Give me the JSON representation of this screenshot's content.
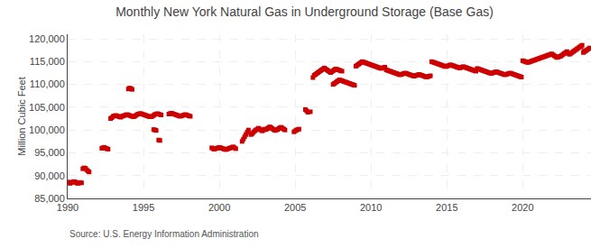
{
  "chart_data": {
    "type": "line",
    "title": "Monthly New York Natural Gas in Underground Storage (Base Gas)",
    "ylabel": "Million Cubic Feet",
    "annotations": [
      "Source: U.S. Energy Information Administration"
    ],
    "color": "#cc0000",
    "marker": "square",
    "line_style": "solid",
    "grid": true,
    "xlim": [
      1990.0,
      2024.5
    ],
    "xticks": [
      1990,
      1995,
      2000,
      2005,
      2010,
      2015,
      2020
    ],
    "ylim": [
      85000,
      121000
    ],
    "yticks": [
      {
        "value": 85000,
        "label": "85,000"
      },
      {
        "value": 90000,
        "label": "90,000"
      },
      {
        "value": 95000,
        "label": "95,000"
      },
      {
        "value": 100000,
        "label": "100,000"
      },
      {
        "value": 105000,
        "label": "105,000"
      },
      {
        "value": 110000,
        "label": "110,000"
      },
      {
        "value": 115000,
        "label": "115,000"
      },
      {
        "value": 120000,
        "label": "120,000"
      }
    ],
    "x": [
      1990,
      1990.0833,
      1990.1667,
      1990.25,
      1990.3333,
      1990.4167,
      1990.5,
      1990.5833,
      1990.6667,
      1990.75,
      1990.8333,
      1990.9167,
      null,
      1991,
      1991.0833,
      1991.1667,
      1991.25,
      1991.3333,
      1991.4167,
      null,
      1992.25,
      1992.3333,
      1992.4167,
      1992.5,
      1992.5833,
      1992.6667,
      null,
      1992.83,
      1992.9133,
      1992.9967,
      1993.08,
      1993.1633,
      1993.2467,
      1993.33,
      1993.4133,
      1993.4967,
      1993.58,
      1993.6633,
      1993.7467,
      1993.83,
      1993.9133,
      1993.9967,
      1994.08,
      1994.1633,
      1994.2467,
      1994.33,
      1994.4133,
      1994.4967,
      1994.58,
      1994.6633,
      1994.7467,
      1994.83,
      1994.9133,
      1994.9967,
      1995.08,
      1995.1633,
      1995.2467,
      1995.33,
      1995.4133,
      1995.4967,
      1995.58,
      1995.6633,
      1995.7467,
      1995.83,
      1995.9133,
      1995.9967,
      1996.08,
      1996.1633,
      null,
      1994,
      1994.0833,
      1994.1667,
      1994.25,
      null,
      1995.67,
      1995.7533,
      1995.8367,
      null,
      1996,
      1996.0833,
      null,
      1996.67,
      1996.7533,
      1996.8367,
      1996.92,
      1997.0033,
      1997.0867,
      1997.17,
      1997.2533,
      1997.3367,
      1997.42,
      1997.5033,
      1997.5867,
      1997.67,
      1997.7533,
      1997.8367,
      1997.92,
      1998.0033,
      1998.0867,
      null,
      1999.5,
      1999.5833,
      1999.6667,
      1999.75,
      1999.8333,
      1999.9167,
      2000,
      2000.0833,
      2000.1667,
      2000.25,
      2000.3333,
      2000.4167,
      2000.5,
      2000.5833,
      2000.6667,
      2000.75,
      2000.8333,
      2000.9167,
      2001,
      2001.0833,
      null,
      2001.5,
      2001.5833,
      2001.6667,
      2001.75,
      2001.8333,
      2001.9167,
      null,
      2002.08,
      2002.1633,
      2002.2467,
      2002.33,
      2002.4133,
      2002.4967,
      2002.58,
      2002.6633,
      2002.7467,
      2002.83,
      2002.9133,
      2002.9967,
      2003.08,
      2003.1633,
      2003.2467,
      2003.33,
      2003.4133,
      2003.4967,
      2003.58,
      2003.6633,
      2003.7467,
      2003.83,
      2003.9133,
      2003.9967,
      2004.08,
      2004.1633,
      2004.2467,
      2004.33,
      null,
      2004.92,
      2005.0033,
      2005.0867,
      2005.17,
      2005.2533,
      null,
      2005.67,
      2005.7533,
      2005.8367,
      null,
      2006,
      null,
      2006.17,
      2006.2533,
      2006.3367,
      2006.42,
      2006.5033,
      2006.5867,
      2006.67,
      2006.7533,
      2006.8367,
      2006.92,
      2007.0033,
      2007.0867,
      2007.17,
      2007.2533,
      2007.3367,
      2007.42,
      2007.5033,
      2007.5867,
      2007.67,
      2007.7533,
      2007.8367,
      2007.92,
      2008.0033,
      2008.0867,
      null,
      2007.5,
      2007.5833,
      2007.6667,
      2007.75,
      2007.8333,
      2007.9167,
      2008,
      2008.0833,
      2008.1667,
      2008.25,
      2008.3333,
      2008.4167,
      2008.5,
      2008.5833,
      2008.6667,
      2008.75,
      2008.8333,
      2008.9167,
      null,
      2009,
      2009.0833,
      2009.1667,
      2009.25,
      2009.3333,
      2009.4167,
      2009.5,
      2009.5833,
      2009.6667,
      2009.75,
      2009.8333,
      2009.9167,
      2010,
      2010.0833,
      2010.1667,
      2010.25,
      2010.3333,
      2010.4167,
      2010.5,
      2010.5833,
      2010.6667,
      2010.75,
      2010.8333,
      2010.9167,
      null,
      2011,
      2011.0833,
      2011.1667,
      2011.25,
      2011.3333,
      2011.4167,
      2011.5,
      2011.5833,
      2011.6667,
      2011.75,
      2011.8333,
      2011.9167,
      2012,
      2012.0833,
      2012.1667,
      2012.25,
      2012.3333,
      2012.4167,
      2012.5,
      2012.5833,
      2012.6667,
      2012.75,
      2012.8333,
      2012.9167,
      2013,
      2013.0833,
      2013.1667,
      2013.25,
      2013.3333,
      2013.4167,
      2013.5,
      2013.5833,
      2013.6667,
      2013.75,
      2013.8333,
      2013.9167,
      null,
      2014,
      2014.0833,
      2014.1667,
      2014.25,
      2014.3333,
      2014.4167,
      2014.5,
      2014.5833,
      2014.6667,
      2014.75,
      2014.8333,
      2014.9167,
      2015,
      2015.0833,
      2015.1667,
      2015.25,
      2015.3333,
      2015.4167,
      2015.5,
      2015.5833,
      2015.6667,
      2015.75,
      2015.8333,
      2015.9167,
      2016,
      2016.0833,
      2016.1667,
      2016.25,
      2016.3333,
      2016.4167,
      2016.5,
      2016.5833,
      2016.6667,
      2016.75,
      2016.8333,
      2016.9167,
      null,
      2017,
      2017.0833,
      2017.1667,
      2017.25,
      2017.3333,
      2017.4167,
      2017.5,
      2017.5833,
      2017.6667,
      2017.75,
      2017.8333,
      2017.9167,
      2018,
      2018.0833,
      2018.1667,
      2018.25,
      2018.3333,
      2018.4167,
      2018.5,
      2018.5833,
      2018.6667,
      2018.75,
      2018.8333,
      2018.9167,
      2019,
      2019.0833,
      2019.1667,
      2019.25,
      2019.3333,
      2019.4167,
      2019.5,
      2019.5833,
      2019.6667,
      2019.75,
      2019.8333,
      2019.9167,
      null,
      2020,
      2020.0833,
      2020.1667,
      2020.25,
      2020.3333,
      2020.4167,
      2020.5,
      2020.5833,
      2020.6667,
      2020.75,
      2020.8333,
      2020.9167,
      2021,
      2021.0833,
      2021.1667,
      2021.25,
      2021.3333,
      2021.4167,
      2021.5,
      2021.5833,
      2021.6667,
      2021.75,
      2021.8333,
      2021.9167,
      2022,
      2022.0833,
      2022.1667,
      2022.25,
      2022.3333,
      2022.4167,
      2022.5,
      2022.5833,
      2022.6667,
      2022.75,
      2022.8333,
      2022.9167,
      2023,
      2023.0833,
      2023.1667,
      2023.25,
      2023.3333,
      2023.4167,
      2023.5,
      2023.5833,
      2023.6667,
      2023.75,
      2023.8333,
      2023.9167,
      2024,
      2024.0833,
      2024.1667,
      2024.25,
      2024.3333,
      2024.4167
    ],
    "values": [
      88600,
      88400,
      88300,
      88500,
      88600,
      88700,
      88600,
      88400,
      88300,
      88400,
      88500,
      88400,
      null,
      91500,
      91700,
      91600,
      91300,
      91000,
      90800,
      null,
      96000,
      96100,
      96200,
      96000,
      95900,
      95800,
      null,
      102500,
      102700,
      103000,
      103100,
      103200,
      103100,
      103000,
      102900,
      102800,
      103000,
      103100,
      103200,
      103300,
      103400,
      103300,
      103200,
      103100,
      103000,
      102900,
      103000,
      103200,
      103400,
      103500,
      103600,
      103600,
      103500,
      103400,
      103300,
      103200,
      103100,
      103000,
      102900,
      102900,
      103000,
      103200,
      103400,
      103500,
      103600,
      103500,
      103400,
      103300,
      null,
      109000,
      109200,
      109100,
      108900,
      null,
      100100,
      100000,
      99900,
      null,
      97800,
      97700,
      null,
      103500,
      103600,
      103700,
      103600,
      103500,
      103400,
      103300,
      103200,
      103100,
      103000,
      103100,
      103200,
      103300,
      103400,
      103300,
      103200,
      103100,
      103000,
      null,
      96100,
      95900,
      95800,
      95900,
      96000,
      96100,
      96200,
      96100,
      96000,
      95900,
      95800,
      95700,
      95800,
      95900,
      96000,
      96100,
      96200,
      96300,
      96100,
      95900,
      null,
      97500,
      98000,
      98500,
      99000,
      99500,
      100000,
      null,
      99000,
      99200,
      99500,
      99800,
      100000,
      100200,
      100400,
      100200,
      100000,
      99800,
      100000,
      100200,
      100100,
      100300,
      100500,
      100700,
      100500,
      100300,
      100100,
      99900,
      100000,
      100100,
      100300,
      100500,
      100600,
      100400,
      100200,
      100000,
      null,
      99600,
      99800,
      100000,
      100100,
      100200,
      null,
      104500,
      104200,
      103900,
      null,
      104000,
      null,
      111500,
      112000,
      112200,
      112400,
      112600,
      112800,
      113000,
      113200,
      113400,
      113600,
      113400,
      113200,
      113000,
      112800,
      112600,
      112800,
      113000,
      113200,
      113400,
      113300,
      113200,
      113100,
      113000,
      112900,
      null,
      110000,
      110200,
      110400,
      110600,
      110800,
      111000,
      110900,
      110800,
      110700,
      110600,
      110500,
      110400,
      110300,
      110200,
      110100,
      110000,
      109900,
      109800,
      null,
      114000,
      114200,
      114400,
      114600,
      114800,
      115000,
      114900,
      114800,
      114700,
      114600,
      114500,
      114400,
      114300,
      114200,
      114100,
      114000,
      113900,
      113800,
      113700,
      113600,
      113500,
      113600,
      113700,
      113800,
      null,
      113200,
      113100,
      113000,
      112900,
      112800,
      112700,
      112600,
      112500,
      112400,
      112300,
      112200,
      112100,
      112200,
      112300,
      112400,
      112500,
      112400,
      112300,
      112200,
      112100,
      112000,
      111900,
      111800,
      111900,
      112000,
      112100,
      112200,
      112100,
      112000,
      111900,
      111800,
      111700,
      111600,
      111700,
      111800,
      111900,
      null,
      115000,
      114900,
      114800,
      114700,
      114600,
      114500,
      114400,
      114300,
      114200,
      114100,
      114000,
      113900,
      114000,
      114100,
      114200,
      114300,
      114200,
      114100,
      114000,
      113900,
      113800,
      113700,
      113600,
      113700,
      113800,
      113900,
      113800,
      113700,
      113600,
      113500,
      113400,
      113300,
      113200,
      113100,
      113000,
      112900,
      null,
      113500,
      113400,
      113300,
      113200,
      113100,
      113000,
      112900,
      112800,
      112700,
      112600,
      112500,
      112400,
      112500,
      112600,
      112700,
      112800,
      112700,
      112600,
      112500,
      112400,
      112300,
      112200,
      112100,
      112200,
      112300,
      112400,
      112500,
      112400,
      112300,
      112200,
      112100,
      112000,
      111900,
      111800,
      111700,
      111600,
      null,
      115200,
      115100,
      115000,
      114900,
      114800,
      114900,
      115000,
      115100,
      115200,
      115300,
      115400,
      115500,
      115600,
      115700,
      115800,
      115900,
      116000,
      116100,
      116200,
      116300,
      116400,
      116500,
      116600,
      116700,
      116500,
      116300,
      116100,
      115900,
      116000,
      116100,
      116200,
      116400,
      116600,
      116800,
      117000,
      117200,
      116800,
      116600,
      116800,
      117000,
      117200,
      117400,
      117600,
      117800,
      118000,
      118200,
      118400,
      118600,
      117000,
      117200,
      117400,
      117600,
      117800,
      118000
    ]
  }
}
